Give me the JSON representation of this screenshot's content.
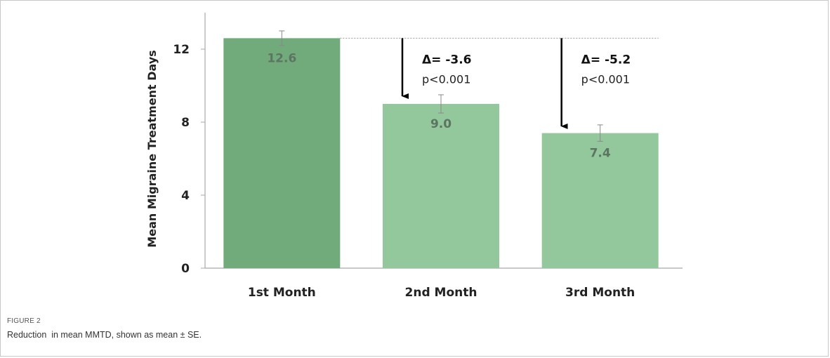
{
  "figure": {
    "label": "FIGURE 2",
    "caption": "Reduction  in mean MMTD, shown as mean ± SE."
  },
  "chart_data": {
    "type": "bar",
    "title": "",
    "xlabel": "",
    "ylabel": "Mean Migraine Treatment Days",
    "categories": [
      "1st Month",
      "2nd Month",
      "3rd Month"
    ],
    "values": [
      12.6,
      9.0,
      7.4
    ],
    "errors": [
      0.4,
      0.5,
      0.45
    ],
    "value_labels": [
      "12.6",
      "9.0",
      "7.4"
    ],
    "ylim": [
      0,
      14
    ],
    "yticks": [
      0,
      4,
      8,
      12
    ],
    "ytick_labels": [
      "0",
      "4",
      "8",
      "12"
    ],
    "bar_colors": [
      "#72ab7b",
      "#93c89d",
      "#93c89d"
    ],
    "value_label_color": "#5c7560",
    "grid": false,
    "reference_line": {
      "y": 12.6,
      "style": "dotted"
    },
    "annotations": [
      {
        "category": "2nd Month",
        "delta": "Δ= -3.6",
        "p": "p<0.001"
      },
      {
        "category": "3rd Month",
        "delta": "Δ= -5.2",
        "p": "p<0.001"
      }
    ]
  }
}
